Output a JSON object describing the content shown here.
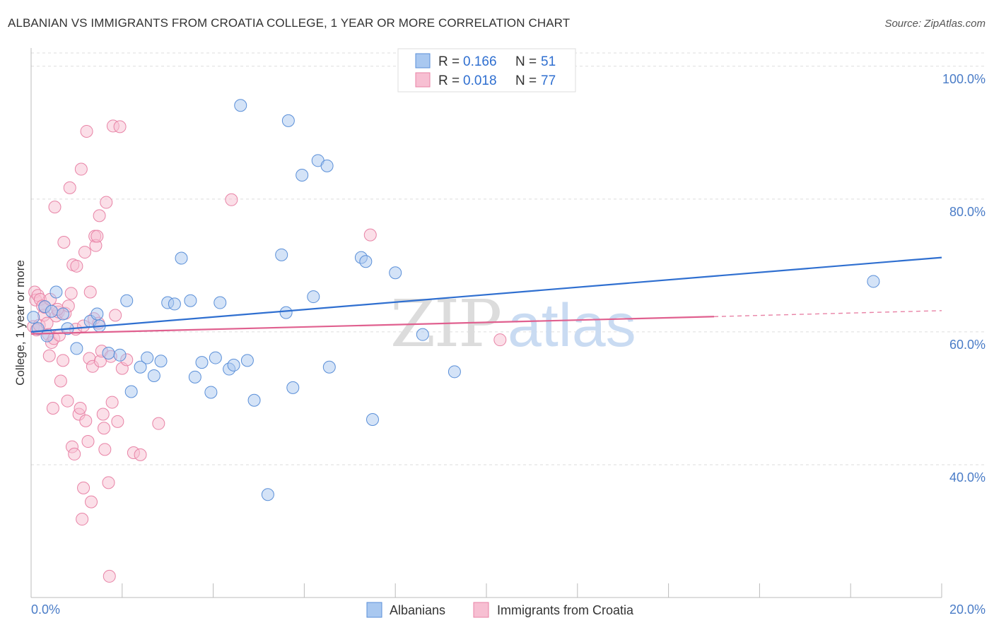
{
  "title": "ALBANIAN VS IMMIGRANTS FROM CROATIA COLLEGE, 1 YEAR OR MORE CORRELATION CHART",
  "source": "Source: ZipAtlas.com",
  "watermark": {
    "zip": "ZIP",
    "atlas": "atlas"
  },
  "colors": {
    "blue_fill": "#a9c8f0",
    "blue_stroke": "#5a8fd8",
    "blue_line": "#2f6fd0",
    "pink_fill": "#f7bfd2",
    "pink_stroke": "#e883a6",
    "pink_line": "#e0608f",
    "grid": "#dddddd",
    "axis_text": "#4a7cc7"
  },
  "legend": {
    "rows": [
      {
        "r_label": "R =",
        "r_value": "0.166",
        "n_label": "N =",
        "n_value": "51"
      },
      {
        "r_label": "R =",
        "r_value": "0.018",
        "n_label": "N =",
        "n_value": "77"
      }
    ]
  },
  "bottom_legend": [
    "Albanians",
    "Immigrants from Croatia"
  ],
  "chart_data": {
    "type": "scatter",
    "title": "ALBANIAN VS IMMIGRANTS FROM CROATIA COLLEGE, 1 YEAR OR MORE CORRELATION CHART",
    "xlabel": "",
    "ylabel": "College, 1 year or more",
    "xlim": [
      0,
      20
    ],
    "ylim": [
      20,
      102
    ],
    "x_tick_labels": [
      "0.0%",
      "20.0%"
    ],
    "y_ticks": [
      40,
      60,
      80,
      100
    ],
    "y_tick_labels": [
      "40.0%",
      "60.0%",
      "80.0%",
      "100.0%"
    ],
    "grid": true,
    "legend_position": "top-center",
    "series": [
      {
        "name": "Albanians",
        "color": "blue",
        "R": 0.166,
        "N": 51,
        "trend": {
          "x0": 0,
          "y0": 60.0,
          "x1": 20,
          "y1": 71.2
        },
        "points": [
          [
            0.05,
            62.2
          ],
          [
            0.15,
            60.5
          ],
          [
            0.3,
            63.8
          ],
          [
            0.35,
            59.4
          ],
          [
            0.45,
            63.1
          ],
          [
            0.55,
            66.0
          ],
          [
            0.7,
            62.7
          ],
          [
            0.8,
            60.5
          ],
          [
            1.0,
            57.5
          ],
          [
            1.3,
            61.6
          ],
          [
            1.45,
            62.7
          ],
          [
            1.5,
            60.9
          ],
          [
            1.7,
            56.8
          ],
          [
            1.95,
            56.5
          ],
          [
            2.1,
            64.7
          ],
          [
            2.2,
            51.0
          ],
          [
            2.4,
            54.7
          ],
          [
            2.55,
            56.1
          ],
          [
            2.7,
            53.4
          ],
          [
            2.85,
            55.6
          ],
          [
            3.0,
            64.4
          ],
          [
            3.15,
            64.2
          ],
          [
            3.3,
            71.1
          ],
          [
            3.5,
            64.7
          ],
          [
            3.6,
            53.2
          ],
          [
            3.75,
            55.4
          ],
          [
            3.95,
            50.9
          ],
          [
            4.05,
            56.1
          ],
          [
            4.15,
            64.4
          ],
          [
            4.35,
            54.4
          ],
          [
            4.45,
            55.0
          ],
          [
            4.6,
            94.1
          ],
          [
            4.75,
            55.7
          ],
          [
            4.9,
            49.7
          ],
          [
            5.2,
            35.5
          ],
          [
            5.5,
            71.6
          ],
          [
            5.6,
            62.9
          ],
          [
            5.65,
            91.8
          ],
          [
            5.75,
            51.6
          ],
          [
            5.95,
            83.6
          ],
          [
            6.2,
            65.3
          ],
          [
            6.3,
            85.8
          ],
          [
            6.5,
            85.0
          ],
          [
            6.55,
            54.7
          ],
          [
            7.25,
            71.2
          ],
          [
            7.35,
            70.6
          ],
          [
            7.5,
            46.8
          ],
          [
            8.0,
            68.9
          ],
          [
            8.6,
            59.6
          ],
          [
            9.3,
            54.0
          ],
          [
            18.5,
            67.6
          ]
        ]
      },
      {
        "name": "Immigrants from Croatia",
        "color": "pink",
        "R": 0.018,
        "N": 77,
        "trend": {
          "x0": 0,
          "y0": 59.7,
          "x1": 15,
          "y1": 62.3
        },
        "trend_dashed": {
          "x0": 15,
          "y0": 62.3,
          "x1": 20,
          "y1": 63.2
        },
        "points": [
          [
            0.05,
            60.8
          ],
          [
            0.08,
            66.0
          ],
          [
            0.1,
            64.8
          ],
          [
            0.12,
            60.3
          ],
          [
            0.15,
            65.5
          ],
          [
            0.18,
            61.0
          ],
          [
            0.2,
            64.9
          ],
          [
            0.25,
            63.9
          ],
          [
            0.28,
            62.5
          ],
          [
            0.3,
            63.7
          ],
          [
            0.35,
            61.3
          ],
          [
            0.38,
            59.6
          ],
          [
            0.4,
            56.4
          ],
          [
            0.42,
            64.9
          ],
          [
            0.45,
            58.4
          ],
          [
            0.48,
            48.5
          ],
          [
            0.5,
            59.0
          ],
          [
            0.52,
            78.8
          ],
          [
            0.55,
            62.4
          ],
          [
            0.6,
            63.0
          ],
          [
            0.62,
            59.5
          ],
          [
            0.65,
            52.6
          ],
          [
            0.7,
            55.7
          ],
          [
            0.72,
            73.5
          ],
          [
            0.75,
            62.8
          ],
          [
            0.8,
            49.6
          ],
          [
            0.82,
            63.9
          ],
          [
            0.85,
            81.7
          ],
          [
            0.88,
            65.8
          ],
          [
            0.9,
            42.7
          ],
          [
            0.92,
            70.1
          ],
          [
            0.95,
            41.6
          ],
          [
            0.98,
            60.4
          ],
          [
            1.0,
            69.9
          ],
          [
            1.05,
            47.6
          ],
          [
            1.08,
            48.5
          ],
          [
            1.1,
            84.5
          ],
          [
            1.12,
            31.8
          ],
          [
            1.15,
            36.5
          ],
          [
            1.18,
            72.0
          ],
          [
            1.2,
            46.6
          ],
          [
            1.22,
            90.2
          ],
          [
            1.25,
            43.5
          ],
          [
            1.28,
            56.0
          ],
          [
            1.3,
            66.0
          ],
          [
            1.32,
            34.4
          ],
          [
            1.35,
            54.8
          ],
          [
            1.38,
            62.0
          ],
          [
            1.4,
            74.4
          ],
          [
            1.42,
            73.0
          ],
          [
            1.45,
            74.4
          ],
          [
            1.48,
            61.3
          ],
          [
            1.5,
            77.5
          ],
          [
            1.52,
            55.6
          ],
          [
            1.55,
            57.1
          ],
          [
            1.58,
            47.6
          ],
          [
            1.6,
            45.5
          ],
          [
            1.62,
            42.3
          ],
          [
            1.65,
            79.5
          ],
          [
            1.7,
            37.3
          ],
          [
            1.72,
            23.2
          ],
          [
            1.75,
            56.3
          ],
          [
            1.78,
            49.4
          ],
          [
            1.8,
            91.0
          ],
          [
            1.85,
            62.5
          ],
          [
            1.9,
            46.5
          ],
          [
            1.95,
            90.9
          ],
          [
            2.0,
            54.5
          ],
          [
            2.1,
            55.8
          ],
          [
            2.25,
            41.8
          ],
          [
            2.4,
            41.5
          ],
          [
            2.8,
            46.2
          ],
          [
            4.4,
            79.9
          ],
          [
            7.45,
            74.6
          ],
          [
            10.3,
            58.8
          ],
          [
            1.15,
            60.9
          ],
          [
            0.58,
            63.4
          ]
        ]
      }
    ]
  }
}
